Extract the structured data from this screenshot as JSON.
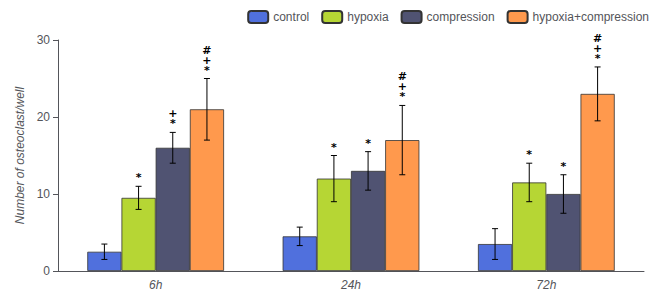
{
  "chart_data": {
    "type": "bar",
    "ylabel": "Number of osteoclast/well",
    "categories": [
      "6h",
      "24h",
      "72h"
    ],
    "series": [
      {
        "name": "control",
        "values": [
          2.5,
          4.5,
          3.5
        ],
        "errors": [
          1.0,
          1.2,
          2.0
        ],
        "annotations": [
          [],
          [],
          []
        ]
      },
      {
        "name": "hypoxia",
        "values": [
          9.5,
          12.0,
          11.5
        ],
        "errors": [
          1.5,
          3.0,
          2.5
        ],
        "annotations": [
          [
            "*"
          ],
          [
            "*"
          ],
          [
            "*"
          ]
        ]
      },
      {
        "name": "compression",
        "values": [
          16.0,
          13.0,
          10.0
        ],
        "errors": [
          2.0,
          2.5,
          2.5
        ],
        "annotations": [
          [
            "*",
            "+"
          ],
          [
            "*"
          ],
          [
            "*"
          ]
        ]
      },
      {
        "name": "hypoxia+compression",
        "values": [
          21.0,
          17.0,
          23.0
        ],
        "errors": [
          4.0,
          4.5,
          3.5
        ],
        "annotations": [
          [
            "*",
            "+",
            "#"
          ],
          [
            "*",
            "+",
            "#"
          ],
          [
            "*",
            "+",
            "#"
          ]
        ]
      }
    ],
    "ylim": [
      0,
      30
    ],
    "yticks": [
      0,
      10,
      20,
      30
    ],
    "grid": false,
    "legend": "upper right"
  }
}
